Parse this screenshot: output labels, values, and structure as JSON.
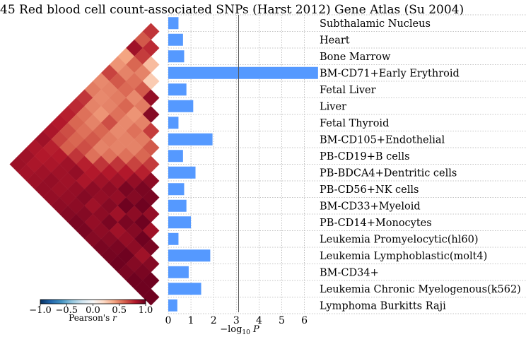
{
  "chart_data": [
    {
      "type": "bar",
      "orientation": "horizontal",
      "title": "45 Red blood cell count-associated SNPs (Harst 2012) Gene Atlas (Su 2004)",
      "xlabel": "−log10 P",
      "xlabel_main": "−log",
      "xlabel_sub": "10",
      "xlabel_tail": " P",
      "xlim": [
        0,
        6.6
      ],
      "xticks": [
        "0",
        "1",
        "2",
        "3",
        "4",
        "5",
        "6"
      ],
      "xtick_values": [
        0,
        1,
        2,
        3,
        4,
        5,
        6
      ],
      "threshold_line": 3.1,
      "grid": true,
      "bar_color": "#5599ff",
      "categories": [
        "Subthalamic Nucleus",
        "Heart",
        "Bone Marrow",
        "BM-CD71+Early Erythroid",
        "Fetal Liver",
        "Liver",
        "Fetal Thyroid",
        "BM-CD105+Endothelial",
        "PB-CD19+B cells",
        "PB-BDCA4+Dentritic cells",
        "PB-CD56+NK cells",
        "BM-CD33+Myeloid",
        "PB-CD14+Monocytes",
        "Leukemia Promyelocytic(hl60)",
        "Leukemia Lymphoblastic(molt4)",
        "BM-CD34+",
        "Leukemia Chronic Myelogenous(k562)",
        "Lymphoma Burkitts Raji"
      ],
      "values": [
        0.45,
        0.65,
        0.7,
        6.6,
        0.8,
        1.1,
        0.45,
        1.95,
        0.65,
        1.2,
        0.7,
        0.8,
        1.0,
        0.45,
        1.85,
        0.9,
        1.45,
        0.4
      ]
    },
    {
      "type": "heatmap",
      "shape": "lower-triangle rotated 45°",
      "colorbar": {
        "label": "Pearson's r",
        "label_main": "Pearson's ",
        "label_italic": "r",
        "ticks": [
          "−1.0",
          "−0.5",
          "0.0",
          "0.5",
          "1.0"
        ],
        "tick_values": [
          -1.0,
          -0.5,
          0.0,
          0.5,
          1.0
        ],
        "range": [
          -1,
          1
        ],
        "colormap": "RdBu_r"
      },
      "row_labels_ref": "same as bar chart categories",
      "matrix_lower": [
        [],
        [
          0.72
        ],
        [
          0.62,
          0.75
        ],
        [
          0.85,
          0.7,
          0.32
        ],
        [
          0.4,
          0.58,
          0.5,
          0.26
        ],
        [
          0.45,
          0.5,
          0.55,
          0.62,
          0.88
        ],
        [
          0.68,
          0.62,
          0.57,
          0.48,
          0.52,
          0.92
        ],
        [
          0.48,
          0.5,
          0.52,
          0.58,
          0.45,
          0.5,
          0.7
        ],
        [
          0.52,
          0.48,
          0.5,
          0.55,
          0.48,
          0.55,
          0.52,
          0.62
        ],
        [
          0.72,
          0.5,
          0.45,
          0.65,
          0.48,
          0.5,
          0.5,
          0.58,
          0.7
        ],
        [
          0.75,
          0.55,
          0.5,
          0.58,
          0.52,
          0.5,
          0.55,
          0.68,
          0.78,
          0.9
        ],
        [
          0.78,
          0.58,
          0.55,
          0.62,
          0.5,
          0.55,
          0.72,
          0.8,
          0.88,
          0.95,
          0.95
        ],
        [
          0.8,
          0.65,
          0.58,
          0.65,
          0.55,
          0.72,
          0.8,
          0.85,
          0.95,
          0.92,
          0.98,
          0.88
        ],
        [
          0.82,
          0.68,
          0.6,
          0.72,
          0.78,
          0.8,
          0.85,
          0.9,
          0.88,
          0.98,
          0.9,
          0.98,
          0.85
        ],
        [
          0.85,
          0.78,
          0.8,
          0.85,
          0.88,
          0.82,
          0.9,
          0.88,
          0.92,
          0.85,
          0.95,
          0.92,
          0.98,
          0.95
        ],
        [
          0.82,
          0.8,
          0.82,
          0.85,
          0.85,
          0.88,
          0.92,
          0.85,
          0.9,
          0.95,
          0.85,
          0.88,
          0.9,
          0.85,
          0.92
        ],
        [
          0.85,
          0.82,
          0.85,
          0.88,
          0.86,
          0.88,
          0.9,
          0.92,
          0.88,
          0.9,
          0.92,
          0.95,
          0.98,
          0.92,
          0.95,
          0.98
        ],
        [
          0.86,
          0.84,
          0.86,
          0.88,
          0.88,
          0.9,
          0.92,
          0.95,
          0.95,
          0.92,
          0.95,
          0.96,
          0.98,
          0.95,
          0.98,
          0.98,
          0.98
        ]
      ]
    }
  ]
}
